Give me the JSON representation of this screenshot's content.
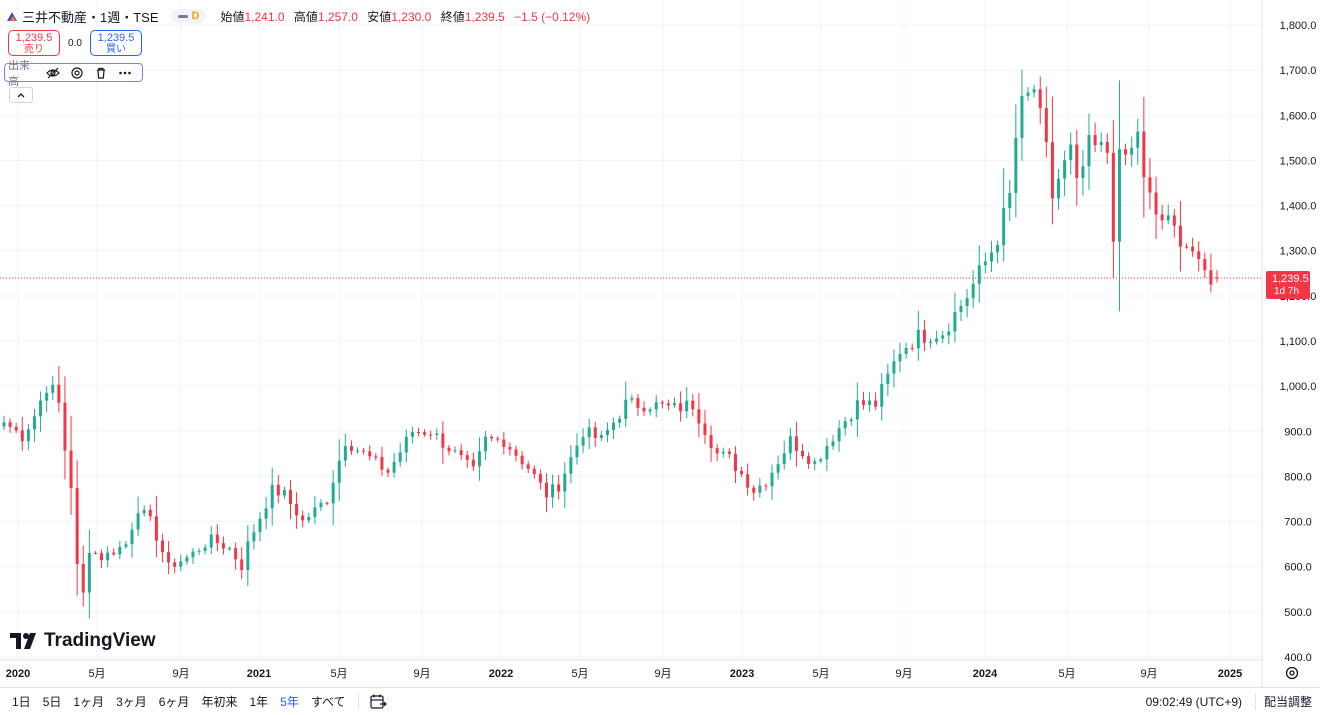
{
  "header": {
    "symbol": "三井不動産・1週・TSE",
    "data_badge": "D",
    "ohlc": {
      "open_label": "始値",
      "open": "1,241.0",
      "high_label": "高値",
      "high": "1,257.0",
      "low_label": "安値",
      "low": "1,230.0",
      "close_label": "終値",
      "close": "1,239.5",
      "change": "−1.5 (−0.12%)"
    }
  },
  "trade": {
    "sell_price": "1,239.5",
    "sell_label": "売り",
    "spread": "0.0",
    "buy_price": "1,239.5",
    "buy_label": "買い"
  },
  "volume_indicator": {
    "label": "出来高"
  },
  "watermark": "TradingView",
  "price_tag": {
    "price": "1,239.5",
    "countdown": "1d 7h"
  },
  "bottom_bar": {
    "ranges": [
      {
        "label": "1日",
        "active": false
      },
      {
        "label": "5日",
        "active": false
      },
      {
        "label": "1ヶ月",
        "active": false
      },
      {
        "label": "3ヶ月",
        "active": false
      },
      {
        "label": "6ヶ月",
        "active": false
      },
      {
        "label": "年初来",
        "active": false
      },
      {
        "label": "1年",
        "active": false
      },
      {
        "label": "5年",
        "active": true
      },
      {
        "label": "すべて",
        "active": false
      }
    ],
    "clock": "09:02:49 (UTC+9)",
    "adjust_label": "配当調整"
  },
  "colors": {
    "up": "#22ab94",
    "down": "#f23645",
    "accent": "#2962ff"
  },
  "chart_data": {
    "type": "candlestick",
    "interval": "1W",
    "y_ticks": [
      "400.0",
      "500.0",
      "600.0",
      "700.0",
      "800.0",
      "900.0",
      "1,000.0",
      "1,100.0",
      "1,200.0",
      "1,300.0",
      "1,400.0",
      "1,500.0",
      "1,600.0",
      "1,700.0",
      "1,800.0"
    ],
    "ylim": [
      400,
      1820
    ],
    "x_labels": [
      "2020",
      "5月",
      "9月",
      "2021",
      "5月",
      "9月",
      "2022",
      "5月",
      "9月",
      "2023",
      "5月",
      "9月",
      "2024",
      "5月",
      "9月",
      "2025"
    ],
    "x_label_bold": [
      true,
      false,
      false,
      true,
      false,
      false,
      true,
      false,
      false,
      true,
      false,
      false,
      true,
      false,
      false,
      true
    ],
    "last_price": 1239.5,
    "anchors": [
      [
        0,
        920
      ],
      [
        3,
        890
      ],
      [
        5,
        935
      ],
      [
        7,
        1000
      ],
      [
        8,
        990
      ],
      [
        9,
        960
      ],
      [
        10,
        860
      ],
      [
        11,
        780
      ],
      [
        12,
        600
      ],
      [
        13,
        540
      ],
      [
        14,
        640
      ],
      [
        16,
        620
      ],
      [
        20,
        650
      ],
      [
        22,
        730
      ],
      [
        24,
        700
      ],
      [
        27,
        600
      ],
      [
        30,
        620
      ],
      [
        34,
        660
      ],
      [
        37,
        640
      ],
      [
        39,
        600
      ],
      [
        40,
        650
      ],
      [
        44,
        770
      ],
      [
        46,
        760
      ],
      [
        49,
        700
      ],
      [
        53,
        750
      ],
      [
        56,
        880
      ],
      [
        60,
        840
      ],
      [
        63,
        810
      ],
      [
        67,
        900
      ],
      [
        70,
        900
      ],
      [
        74,
        850
      ],
      [
        77,
        810
      ],
      [
        79,
        880
      ],
      [
        82,
        880
      ],
      [
        86,
        820
      ],
      [
        89,
        760
      ],
      [
        91,
        780
      ],
      [
        95,
        900
      ],
      [
        98,
        880
      ],
      [
        102,
        960
      ],
      [
        106,
        960
      ],
      [
        110,
        950
      ],
      [
        113,
        960
      ],
      [
        117,
        850
      ],
      [
        119,
        840
      ],
      [
        123,
        770
      ],
      [
        125,
        790
      ],
      [
        129,
        880
      ],
      [
        133,
        830
      ],
      [
        136,
        890
      ],
      [
        140,
        960
      ],
      [
        143,
        960
      ],
      [
        147,
        1080
      ],
      [
        150,
        1110
      ],
      [
        154,
        1120
      ],
      [
        158,
        1200
      ],
      [
        162,
        1300
      ],
      [
        163,
        1330
      ],
      [
        165,
        1420
      ],
      [
        166,
        1550
      ],
      [
        167,
        1620
      ],
      [
        169,
        1660
      ],
      [
        170,
        1590
      ],
      [
        171,
        1520
      ],
      [
        172,
        1420
      ],
      [
        173,
        1460
      ],
      [
        175,
        1520
      ],
      [
        176,
        1440
      ],
      [
        178,
        1530
      ],
      [
        181,
        1520
      ],
      [
        182,
        1340
      ],
      [
        183,
        1500
      ],
      [
        185,
        1520
      ],
      [
        186,
        1570
      ],
      [
        187,
        1450
      ],
      [
        189,
        1380
      ],
      [
        191,
        1360
      ],
      [
        193,
        1330
      ],
      [
        195,
        1300
      ],
      [
        196,
        1260
      ],
      [
        198,
        1240
      ],
      [
        199,
        1239.5
      ]
    ],
    "ohlc_last": {
      "open": 1241.0,
      "high": 1257.0,
      "low": 1230.0,
      "close": 1239.5
    }
  }
}
